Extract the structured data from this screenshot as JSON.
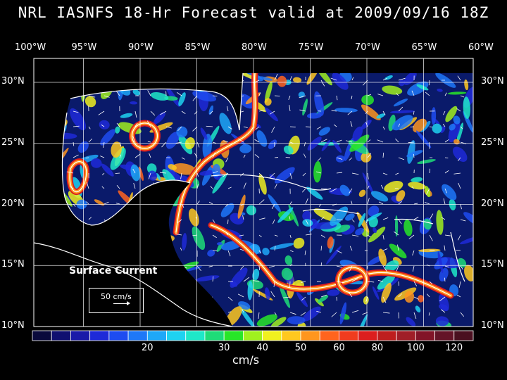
{
  "title": "NRL IASNFS  18-Hr Forecast valid at 2009/09/16 18Z",
  "lon_labels": [
    "100°W",
    "95°W",
    "90°W",
    "85°W",
    "80°W",
    "75°W",
    "70°W",
    "65°W",
    "60°W"
  ],
  "lat_labels_left": [
    "30°N",
    "25°N",
    "20°N",
    "15°N",
    "10°N"
  ],
  "lat_labels_right": [
    "30°N",
    "25°N",
    "20°N",
    "15°N",
    "10°N"
  ],
  "legend": {
    "title": "Surface Current",
    "scale_label": "50 cm/s"
  },
  "colorbar": {
    "unit": "cm/s",
    "tick_labels": [
      "20",
      "30",
      "40",
      "50",
      "60",
      "80",
      "100",
      "120"
    ],
    "colors": [
      "#0a0a3c",
      "#101070",
      "#1a1aa8",
      "#1e2ad8",
      "#1e4cf0",
      "#1e78f8",
      "#1ea8f8",
      "#1ed2f0",
      "#1ee8c8",
      "#1edc78",
      "#28e628",
      "#a0f01e",
      "#f0f01e",
      "#ffc81e",
      "#ff961e",
      "#ff641e",
      "#f03c1e",
      "#dc1e1e",
      "#be1e1e",
      "#a01e28",
      "#821428",
      "#641428",
      "#4a1020"
    ]
  },
  "map_colors": {
    "land": "#000000",
    "coast": "#ffffff",
    "grid": "#ffffff"
  }
}
